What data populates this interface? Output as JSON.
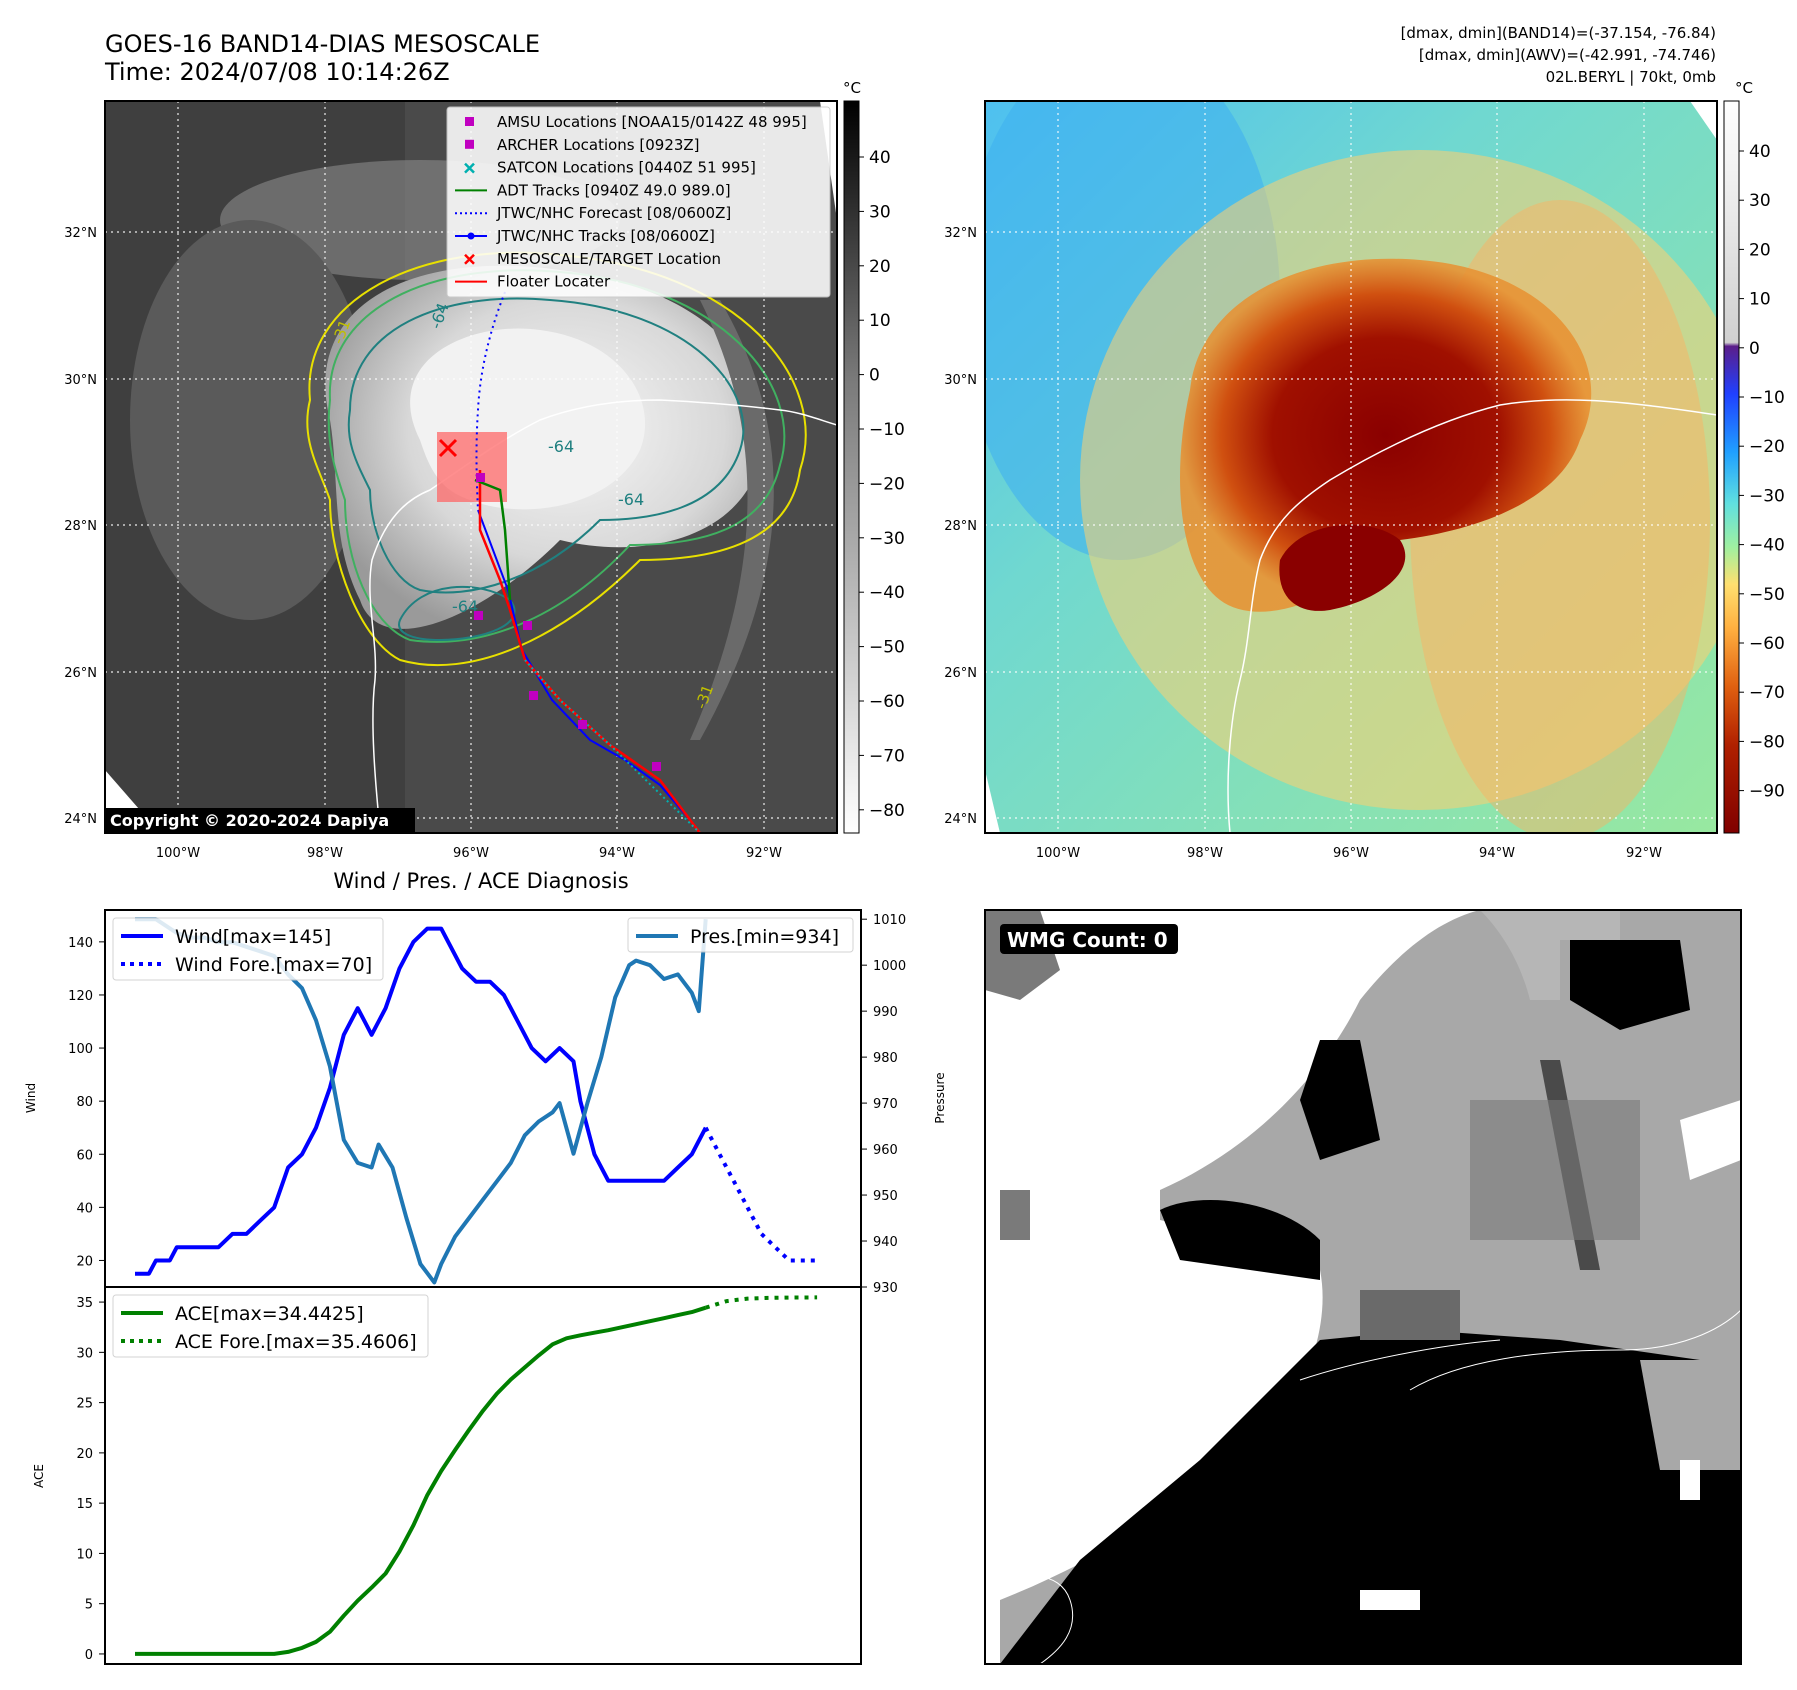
{
  "header": {
    "title": "GOES-16 BAND14-DIAS MESOSCALE",
    "time": "Time: 2024/07/08 10:14:26Z",
    "stats_line1": "[dmax, dmin](BAND14)=(-37.154, -76.84)",
    "stats_line2": "[dmax, dmin](AWV)=(-42.991, -74.746)",
    "storm_line": "02L.BERYL | 70kt, 0mb"
  },
  "map": {
    "lon_ticks": [
      "100°W",
      "98°W",
      "96°W",
      "94°W",
      "92°W"
    ],
    "lat_ticks": [
      "32°N",
      "30°N",
      "28°N",
      "26°N",
      "24°N"
    ],
    "copyright": "Copyright © 2020-2024 Dapiya",
    "contour_labels": [
      "-64",
      "-64",
      "-64",
      "-31",
      "-64",
      "-31"
    ],
    "legend": [
      {
        "label": "AMSU Locations [NOAA15/0142Z 48 995]",
        "marker": "square",
        "color": "#c000c0"
      },
      {
        "label": "ARCHER Locations [0923Z]",
        "marker": "square",
        "color": "#c000c0"
      },
      {
        "label": "SATCON Locations [0440Z 51 995]",
        "marker": "x",
        "color": "#00b0b0"
      },
      {
        "label": "ADT Tracks [0940Z 49.0 989.0]",
        "marker": "line",
        "color": "#008000"
      },
      {
        "label": "JTWC/NHC Forecast [08/0600Z]",
        "marker": "dotted",
        "color": "#0000ff"
      },
      {
        "label": "JTWC/NHC Tracks [08/0600Z]",
        "marker": "line-dot",
        "color": "#0000ff"
      },
      {
        "label": "MESOSCALE/TARGET Location",
        "marker": "x",
        "color": "#ff0000"
      },
      {
        "label": "Floater Locater",
        "marker": "line",
        "color": "#ff0000"
      }
    ],
    "colorbar_left": {
      "unit": "°C",
      "ticks": [
        "40",
        "30",
        "20",
        "10",
        "0",
        "−10",
        "−20",
        "−30",
        "−40",
        "−50",
        "−60",
        "−70",
        "−80"
      ]
    },
    "colorbar_right": {
      "unit": "°C",
      "ticks": [
        "40",
        "30",
        "20",
        "10",
        "0",
        "−10",
        "−20",
        "−30",
        "−40",
        "−50",
        "−60",
        "−70",
        "−80",
        "−90"
      ]
    }
  },
  "wmg": {
    "label": "WMG Count: 0"
  },
  "chart_data": [
    {
      "type": "line",
      "title": "Wind / Pres. / ACE Diagnosis",
      "ylabel": "Wind",
      "ylabel_right": "Pressure",
      "ylim": [
        10,
        152
      ],
      "ylim_right": [
        930,
        1012
      ],
      "yticks": [
        20,
        40,
        60,
        80,
        100,
        120,
        140
      ],
      "yticks_right": [
        930,
        940,
        950,
        960,
        970,
        980,
        990,
        1000,
        1010
      ],
      "xlim": [
        0,
        100
      ],
      "series": [
        {
          "name": "Wind[max=145]",
          "axis": "left",
          "color": "#0000ff",
          "style": "solid",
          "x": [
            0,
            2,
            3,
            5,
            6,
            8,
            10,
            12,
            14,
            16,
            18,
            20,
            22,
            24,
            26,
            28,
            30,
            32,
            33,
            34,
            35,
            36,
            38,
            40,
            42,
            44,
            45,
            47,
            49,
            51,
            53,
            54,
            55,
            57,
            59,
            61,
            63,
            64,
            66,
            68,
            70,
            72,
            74,
            76,
            78,
            80,
            82
          ],
          "y": [
            15,
            15,
            20,
            20,
            25,
            25,
            25,
            25,
            30,
            30,
            35,
            40,
            55,
            60,
            70,
            85,
            105,
            115,
            110,
            105,
            110,
            115,
            130,
            140,
            145,
            145,
            140,
            130,
            125,
            125,
            120,
            115,
            110,
            100,
            95,
            100,
            95,
            80,
            60,
            50,
            50,
            50,
            50,
            50,
            55,
            60,
            70
          ]
        },
        {
          "name": "Wind Fore.[max=70]",
          "axis": "left",
          "color": "#0000ff",
          "style": "dotted",
          "x": [
            82,
            84,
            86,
            88,
            90,
            92,
            94,
            96,
            98
          ],
          "y": [
            70,
            60,
            50,
            40,
            30,
            25,
            20,
            20,
            20
          ]
        },
        {
          "name": "Pres.[min=934]",
          "axis": "right",
          "color": "#1f77b4",
          "style": "solid",
          "x": [
            0,
            3,
            6,
            8,
            10,
            12,
            14,
            16,
            18,
            20,
            22,
            24,
            26,
            28,
            30,
            32,
            34,
            35,
            37,
            39,
            41,
            43,
            44,
            46,
            48,
            50,
            52,
            54,
            56,
            58,
            60,
            61,
            63,
            65,
            67,
            69,
            71,
            72,
            74,
            76,
            78,
            80,
            81,
            82
          ],
          "y": [
            1010,
            1010,
            1007,
            1006,
            1006,
            1005,
            1005,
            1004,
            1003,
            1002,
            998,
            995,
            988,
            978,
            962,
            957,
            956,
            961,
            956,
            945,
            935,
            931,
            935,
            941,
            945,
            949,
            953,
            957,
            963,
            966,
            968,
            970,
            959,
            970,
            980,
            993,
            1000,
            1001,
            1000,
            997,
            998,
            994,
            990,
            1010
          ]
        },
        {
          "name": "ACE[max=34.4425]",
          "axis": "ace",
          "color": "#008000",
          "style": "solid",
          "x": [
            0,
            4,
            8,
            12,
            16,
            20,
            22,
            24,
            26,
            28,
            30,
            32,
            34,
            36,
            38,
            40,
            42,
            44,
            46,
            48,
            50,
            52,
            54,
            56,
            58,
            60,
            62,
            64,
            66,
            68,
            70,
            72,
            74,
            76,
            78,
            80,
            82
          ],
          "y": [
            0,
            0,
            0,
            0,
            0,
            0,
            0.2,
            0.6,
            1.2,
            2.2,
            3.8,
            5.3,
            6.6,
            8.0,
            10.2,
            12.8,
            15.8,
            18.2,
            20.3,
            22.3,
            24.2,
            25.9,
            27.3,
            28.5,
            29.7,
            30.8,
            31.4,
            31.7,
            31.95,
            32.2,
            32.5,
            32.8,
            33.1,
            33.4,
            33.7,
            34.0,
            34.4425
          ]
        },
        {
          "name": "ACE Fore.[max=35.4606]",
          "axis": "ace",
          "color": "#008000",
          "style": "dotted",
          "x": [
            82,
            85,
            88,
            91,
            94,
            98
          ],
          "y": [
            34.4425,
            35.1,
            35.35,
            35.42,
            35.45,
            35.4606
          ]
        }
      ],
      "ace_ylabel": "ACE",
      "ace_ylim": [
        -1,
        36.5
      ],
      "ace_yticks": [
        0,
        5,
        10,
        15,
        20,
        25,
        30,
        35
      ]
    }
  ]
}
